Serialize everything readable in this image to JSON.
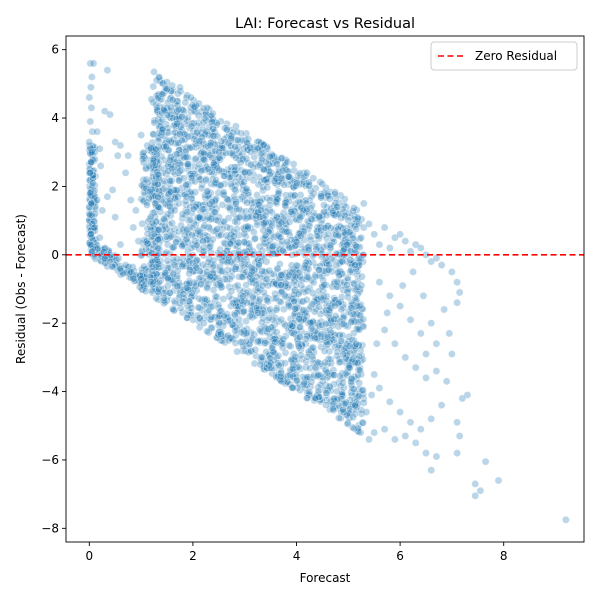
{
  "chart_data": {
    "type": "scatter",
    "title": "LAI: Forecast vs Residual",
    "xlabel": "Forecast",
    "ylabel": "Residual (Obs - Forecast)",
    "xlim": [
      -0.45,
      9.55
    ],
    "ylim": [
      -8.4,
      6.4
    ],
    "xticks": [
      0,
      2,
      4,
      6,
      8
    ],
    "yticks": [
      -8,
      -6,
      -4,
      -2,
      0,
      2,
      4,
      6
    ],
    "grid": false,
    "legend": {
      "placement": "top-right",
      "entries": [
        {
          "label": "Zero Residual",
          "color": "#ff0000",
          "style": "dashed"
        }
      ]
    },
    "reference_line": {
      "y": 0,
      "label": "Zero Residual",
      "color": "#ff0000"
    },
    "point_color": "#1f77b4",
    "point_alpha": 0.3,
    "bulk_region": {
      "description_points": "dense cloud bounded below by residual = -forecast",
      "x_range": [
        1.0,
        5.3
      ],
      "upper_edge": [
        [
          1.2,
          5.3
        ],
        [
          2.0,
          4.6
        ],
        [
          3.0,
          3.6
        ],
        [
          4.0,
          2.6
        ],
        [
          5.0,
          1.6
        ],
        [
          5.3,
          1.2
        ]
      ],
      "lower_edge": [
        [
          1.2,
          -1.2
        ],
        [
          3.0,
          -3.0
        ],
        [
          5.0,
          -5.0
        ],
        [
          5.3,
          -5.3
        ]
      ]
    },
    "points": [
      [
        0.02,
        5.6
      ],
      [
        0.05,
        5.2
      ],
      [
        0.03,
        4.9
      ],
      [
        0.08,
        5.6
      ],
      [
        0.0,
        4.6
      ],
      [
        0.04,
        4.3
      ],
      [
        0.02,
        3.9
      ],
      [
        0.06,
        3.6
      ],
      [
        0.0,
        3.3
      ],
      [
        0.05,
        3.0
      ],
      [
        0.03,
        2.7
      ],
      [
        0.01,
        2.4
      ],
      [
        0.07,
        2.1
      ],
      [
        0.02,
        1.8
      ],
      [
        0.04,
        1.5
      ],
      [
        0.0,
        1.2
      ],
      [
        0.06,
        0.9
      ],
      [
        0.03,
        0.6
      ],
      [
        0.02,
        0.3
      ],
      [
        0.05,
        0.1
      ],
      [
        0.15,
        3.6
      ],
      [
        0.2,
        3.1
      ],
      [
        0.22,
        2.6
      ],
      [
        0.3,
        4.2
      ],
      [
        0.35,
        5.4
      ],
      [
        0.4,
        4.1
      ],
      [
        0.15,
        1.6
      ],
      [
        0.25,
        1.3
      ],
      [
        0.35,
        1.7
      ],
      [
        0.45,
        1.9
      ],
      [
        0.5,
        3.3
      ],
      [
        0.55,
        2.9
      ],
      [
        0.6,
        3.2
      ],
      [
        0.5,
        1.1
      ],
      [
        0.7,
        2.4
      ],
      [
        0.75,
        2.9
      ],
      [
        0.8,
        1.6
      ],
      [
        0.85,
        0.8
      ],
      [
        0.9,
        1.3
      ],
      [
        1.0,
        3.5
      ],
      [
        1.05,
        2.7
      ],
      [
        1.1,
        2.2
      ],
      [
        0.95,
        0.4
      ],
      [
        0.6,
        0.3
      ],
      [
        0.3,
        0.2
      ],
      [
        0.2,
        0.5
      ],
      [
        0.1,
        0.8
      ],
      [
        0.3,
        -0.1
      ],
      [
        0.4,
        -0.2
      ],
      [
        0.5,
        -0.3
      ],
      [
        0.6,
        -0.4
      ],
      [
        0.7,
        -0.3
      ],
      [
        0.8,
        -0.5
      ],
      [
        0.9,
        -0.6
      ],
      [
        1.0,
        -0.7
      ],
      [
        0.45,
        -0.35
      ],
      [
        0.65,
        -0.55
      ],
      [
        0.85,
        -0.7
      ],
      [
        1.25,
        5.35
      ],
      [
        1.35,
        5.2
      ],
      [
        1.5,
        5.05
      ],
      [
        1.6,
        4.95
      ],
      [
        1.75,
        4.9
      ],
      [
        1.4,
        4.7
      ],
      [
        1.2,
        4.55
      ],
      [
        5.3,
        1.5
      ],
      [
        5.4,
        0.9
      ],
      [
        5.5,
        0.6
      ],
      [
        5.6,
        0.3
      ],
      [
        5.7,
        0.8
      ],
      [
        5.8,
        0.2
      ],
      [
        5.9,
        0.5
      ],
      [
        6.0,
        0.6
      ],
      [
        6.1,
        0.4
      ],
      [
        6.2,
        0.1
      ],
      [
        6.3,
        0.3
      ],
      [
        6.4,
        0.2
      ],
      [
        6.5,
        0.0
      ],
      [
        6.6,
        -0.2
      ],
      [
        6.7,
        -0.1
      ],
      [
        6.8,
        -0.3
      ],
      [
        7.0,
        -0.5
      ],
      [
        7.1,
        -0.8
      ],
      [
        7.15,
        -1.1
      ],
      [
        7.1,
        -1.4
      ],
      [
        5.6,
        -0.8
      ],
      [
        5.8,
        -1.2
      ],
      [
        6.0,
        -1.5
      ],
      [
        6.2,
        -1.9
      ],
      [
        6.4,
        -2.3
      ],
      [
        6.6,
        -2.0
      ],
      [
        6.7,
        -2.6
      ],
      [
        6.5,
        -2.9
      ],
      [
        6.3,
        -3.3
      ],
      [
        6.1,
        -3.0
      ],
      [
        5.9,
        -2.6
      ],
      [
        5.7,
        -2.2
      ],
      [
        5.5,
        -3.5
      ],
      [
        5.6,
        -3.9
      ],
      [
        5.8,
        -4.3
      ],
      [
        6.0,
        -4.6
      ],
      [
        6.2,
        -4.9
      ],
      [
        6.4,
        -5.1
      ],
      [
        6.6,
        -4.8
      ],
      [
        6.8,
        -4.4
      ],
      [
        6.9,
        -3.7
      ],
      [
        7.0,
        -2.9
      ],
      [
        6.7,
        -3.4
      ],
      [
        6.5,
        -3.6
      ],
      [
        5.9,
        -5.4
      ],
      [
        6.1,
        -5.3
      ],
      [
        6.3,
        -5.5
      ],
      [
        6.5,
        -5.8
      ],
      [
        6.6,
        -6.3
      ],
      [
        6.7,
        -5.9
      ],
      [
        7.1,
        -4.9
      ],
      [
        7.15,
        -5.3
      ],
      [
        7.1,
        -5.8
      ],
      [
        7.3,
        -4.1
      ],
      [
        7.45,
        -6.7
      ],
      [
        7.45,
        -7.05
      ],
      [
        7.55,
        -6.9
      ],
      [
        7.65,
        -6.05
      ],
      [
        7.9,
        -6.6
      ],
      [
        9.2,
        -7.75
      ],
      [
        5.4,
        -5.4
      ],
      [
        5.5,
        -5.2
      ],
      [
        5.7,
        -5.1
      ],
      [
        5.35,
        -4.6
      ],
      [
        5.45,
        -4.1
      ],
      [
        5.55,
        -2.6
      ],
      [
        5.75,
        -1.7
      ],
      [
        6.05,
        -0.9
      ],
      [
        6.25,
        -0.5
      ],
      [
        6.45,
        -1.2
      ],
      [
        6.85,
        -1.6
      ],
      [
        6.95,
        -2.3
      ],
      [
        7.2,
        -4.2
      ]
    ]
  }
}
